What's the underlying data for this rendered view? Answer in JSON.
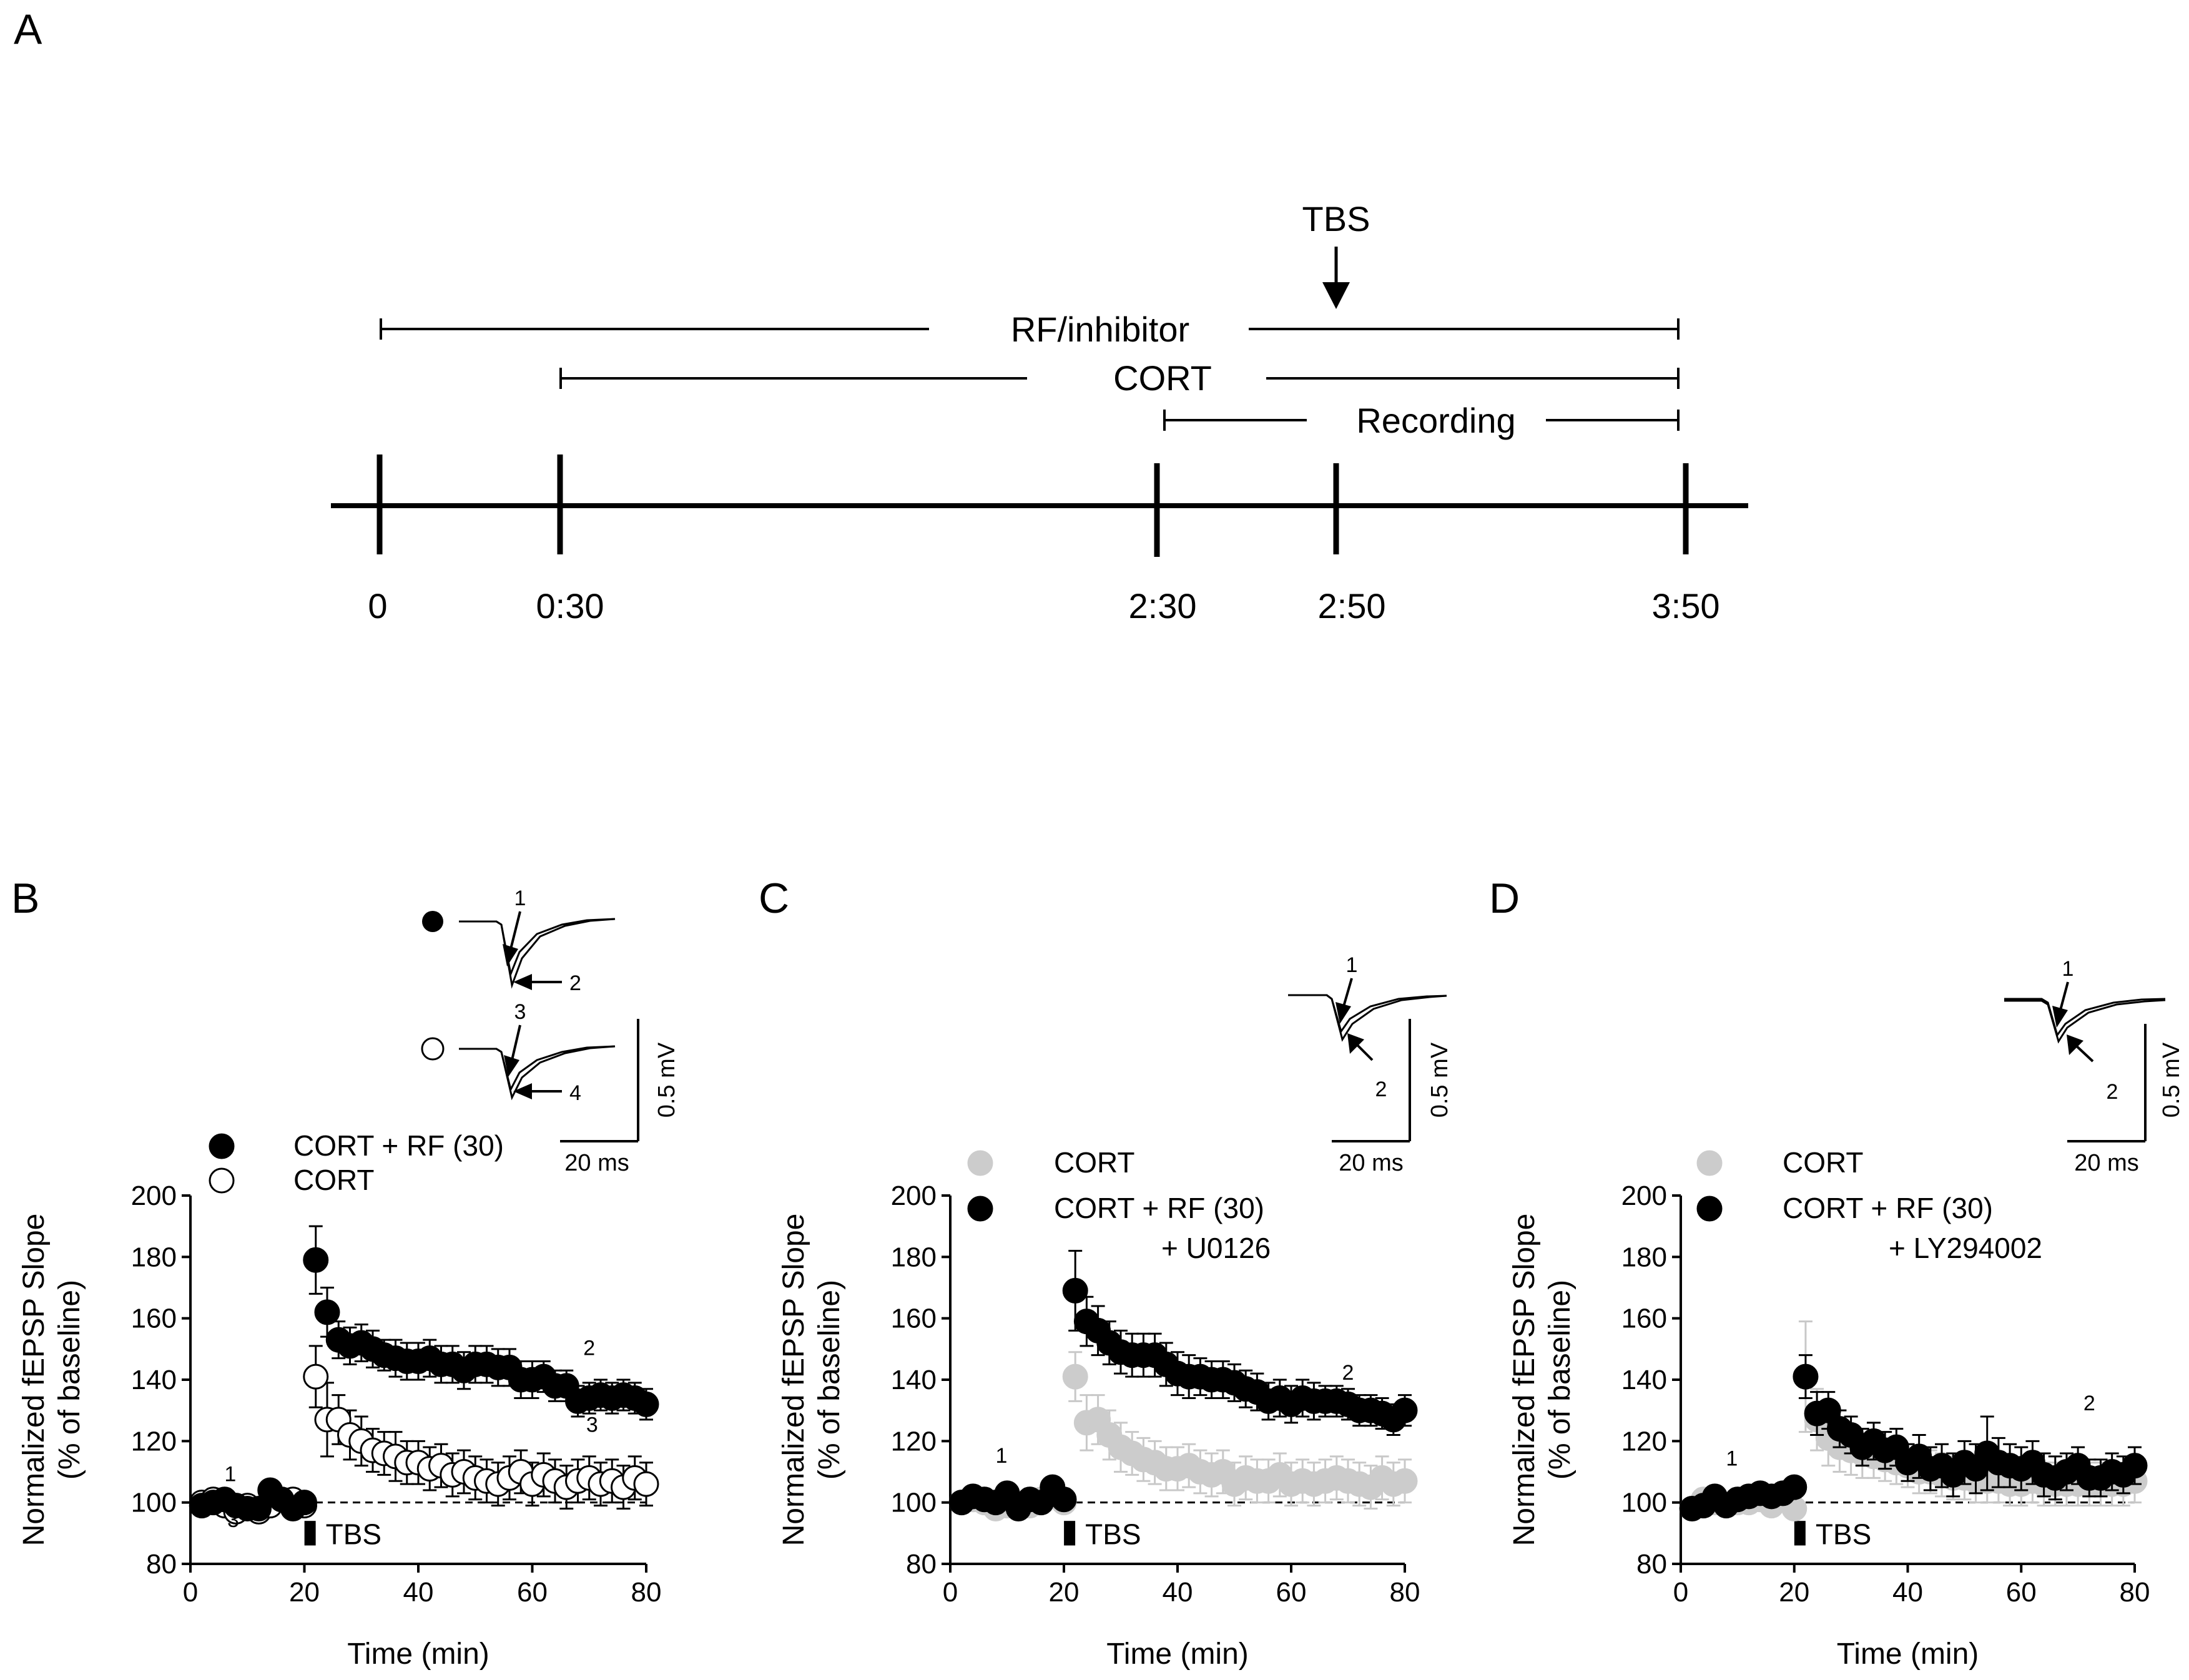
{
  "panel_letters": {
    "A": "A",
    "B": "B",
    "C": "C",
    "D": "D"
  },
  "timeline": {
    "ticks": [
      "0",
      "0:30",
      "2:30",
      "2:50",
      "3:50"
    ],
    "bars": {
      "rf": "RF/inhibitor",
      "cort": "CORT",
      "recording": "Recording"
    },
    "stim_label": "TBS"
  },
  "colors": {
    "black_marker": "#000000",
    "grey_marker": "#cccccc",
    "open_marker_fill": "#ffffff"
  },
  "chart_data": [
    {
      "panel": "B",
      "type": "scatter",
      "xlabel": "Time (min)",
      "ylabel": "Normalized fEPSP Slope",
      "ylabel2": "(% of baseline)",
      "xlim": [
        0,
        80
      ],
      "ylim": [
        80,
        200
      ],
      "xticks": [
        "0",
        "20",
        "40",
        "60",
        "80"
      ],
      "yticks": [
        "80",
        "100",
        "120",
        "140",
        "160",
        "180",
        "200"
      ],
      "baseline": 100,
      "stim_label": "TBS",
      "stim_x": 21,
      "legend": [
        "CORT + RF (30)",
        "CORT"
      ],
      "legend_markers": [
        "filled-black",
        "open"
      ],
      "point_labels": [
        {
          "text": "1",
          "x": 7,
          "y": 107
        },
        {
          "text": "3",
          "x": 7.5,
          "y": 92
        },
        {
          "text": "2",
          "x": 70,
          "y": 148
        },
        {
          "text": "3",
          "x": 70.5,
          "y": 123
        }
      ],
      "trace_labels": [
        "1",
        "2",
        "3",
        "4"
      ],
      "scale_x": "20 ms",
      "scale_y": "0.5 mV",
      "series": [
        {
          "name": "CORT",
          "marker": "open",
          "x": [
            2,
            4,
            6,
            8,
            10,
            12,
            14,
            16,
            18,
            20,
            22,
            24,
            26,
            28,
            30,
            32,
            34,
            36,
            38,
            40,
            42,
            44,
            46,
            48,
            50,
            52,
            54,
            56,
            58,
            60,
            62,
            64,
            66,
            68,
            70,
            72,
            74,
            76,
            78,
            80
          ],
          "y": [
            100,
            101,
            99,
            97,
            99,
            97,
            99,
            101,
            101,
            99,
            141,
            127,
            127,
            122,
            120,
            117,
            116,
            115,
            113,
            113,
            111,
            112,
            109,
            110,
            108,
            107,
            106,
            108,
            110,
            106,
            109,
            107,
            105,
            107,
            108,
            106,
            107,
            105,
            108,
            106
          ],
          "err": [
            1,
            2,
            2,
            2,
            2,
            2,
            2,
            2,
            2,
            2,
            10,
            12,
            8,
            8,
            8,
            7,
            7,
            8,
            7,
            7,
            7,
            7,
            7,
            7,
            7,
            7,
            7,
            7,
            7,
            7,
            7,
            7,
            7,
            7,
            7,
            7,
            7,
            7,
            7,
            7
          ]
        },
        {
          "name": "CORT + RF (30)",
          "marker": "filled-black",
          "x": [
            2,
            4,
            6,
            8,
            10,
            12,
            14,
            16,
            18,
            20,
            22,
            24,
            26,
            28,
            30,
            32,
            34,
            36,
            38,
            40,
            42,
            44,
            46,
            48,
            50,
            52,
            54,
            56,
            58,
            60,
            62,
            64,
            66,
            68,
            70,
            72,
            74,
            76,
            78,
            80
          ],
          "y": [
            99,
            100,
            101,
            99,
            98,
            98,
            104,
            101,
            98,
            100,
            179,
            162,
            153,
            151,
            152,
            150,
            148,
            147,
            146,
            146,
            147,
            145,
            145,
            143,
            145,
            145,
            144,
            144,
            140,
            140,
            141,
            138,
            138,
            133,
            134,
            135,
            134,
            135,
            134,
            132
          ],
          "err": [
            1,
            2,
            2,
            2,
            2,
            2,
            3,
            2,
            2,
            2,
            11,
            8,
            6,
            6,
            6,
            6,
            5,
            6,
            6,
            6,
            6,
            6,
            6,
            6,
            6,
            6,
            6,
            6,
            6,
            6,
            5,
            5,
            5,
            5,
            5,
            5,
            5,
            5,
            5,
            5
          ]
        }
      ]
    },
    {
      "panel": "C",
      "type": "scatter",
      "xlabel": "Time (min)",
      "ylabel": "Normalized fEPSP Slope",
      "ylabel2": "(% of baseline)",
      "xlim": [
        0,
        80
      ],
      "ylim": [
        80,
        200
      ],
      "xticks": [
        "0",
        "20",
        "40",
        "60",
        "80"
      ],
      "yticks": [
        "80",
        "100",
        "120",
        "140",
        "160",
        "180",
        "200"
      ],
      "baseline": 100,
      "stim_label": "TBS",
      "stim_x": 21,
      "legend": [
        "CORT",
        "CORT + RF (30)",
        "+ U0126"
      ],
      "legend_markers": [
        "filled-grey",
        "filled-black"
      ],
      "point_labels": [
        {
          "text": "1",
          "x": 9,
          "y": 113
        },
        {
          "text": "2",
          "x": 70,
          "y": 140
        }
      ],
      "trace_labels": [
        "1",
        "2"
      ],
      "scale_x": "20 ms",
      "scale_y": "0.5 mV",
      "series": [
        {
          "name": "CORT",
          "marker": "filled-grey",
          "x": [
            2,
            4,
            6,
            8,
            10,
            12,
            14,
            16,
            18,
            20,
            22,
            24,
            26,
            28,
            30,
            32,
            34,
            36,
            38,
            40,
            42,
            44,
            46,
            48,
            50,
            52,
            54,
            56,
            58,
            60,
            62,
            64,
            66,
            68,
            70,
            72,
            74,
            76,
            78,
            80
          ],
          "y": [
            100,
            101,
            100,
            98,
            99,
            98,
            99,
            101,
            102,
            100,
            141,
            126,
            127,
            122,
            118,
            116,
            114,
            113,
            111,
            111,
            112,
            110,
            109,
            110,
            106,
            108,
            107,
            107,
            109,
            106,
            107,
            106,
            107,
            108,
            107,
            106,
            105,
            108,
            106,
            107
          ],
          "err": [
            1,
            2,
            2,
            2,
            2,
            2,
            2,
            2,
            2,
            2,
            8,
            9,
            8,
            8,
            8,
            7,
            7,
            7,
            7,
            7,
            7,
            7,
            7,
            7,
            7,
            7,
            7,
            7,
            7,
            7,
            7,
            7,
            7,
            7,
            7,
            7,
            7,
            7,
            7,
            7
          ]
        },
        {
          "name": "CORT + RF (30) + U0126",
          "marker": "filled-black",
          "x": [
            2,
            4,
            6,
            8,
            10,
            12,
            14,
            16,
            18,
            20,
            22,
            24,
            26,
            28,
            30,
            32,
            34,
            36,
            38,
            40,
            42,
            44,
            46,
            48,
            50,
            52,
            54,
            56,
            58,
            60,
            62,
            64,
            66,
            68,
            70,
            72,
            74,
            76,
            78,
            80
          ],
          "y": [
            100,
            102,
            101,
            100,
            103,
            98,
            101,
            100,
            105,
            101,
            169,
            159,
            156,
            152,
            149,
            148,
            148,
            148,
            145,
            142,
            141,
            141,
            140,
            140,
            139,
            137,
            136,
            133,
            134,
            132,
            134,
            133,
            133,
            133,
            132,
            130,
            130,
            129,
            127,
            130
          ],
          "err": [
            1,
            2,
            2,
            2,
            2,
            2,
            2,
            2,
            2,
            2,
            13,
            8,
            8,
            7,
            7,
            7,
            7,
            7,
            7,
            7,
            7,
            6,
            6,
            6,
            6,
            6,
            6,
            6,
            6,
            6,
            6,
            6,
            5,
            5,
            5,
            5,
            5,
            5,
            5,
            5
          ]
        }
      ]
    },
    {
      "panel": "D",
      "type": "scatter",
      "xlabel": "Time (min)",
      "ylabel": "Normalized fEPSP Slope",
      "ylabel2": "(% of baseline)",
      "xlim": [
        0,
        80
      ],
      "ylim": [
        80,
        200
      ],
      "xticks": [
        "0",
        "20",
        "40",
        "60",
        "80"
      ],
      "yticks": [
        "80",
        "100",
        "120",
        "140",
        "160",
        "180",
        "200"
      ],
      "baseline": 100,
      "stim_label": "TBS",
      "stim_x": 21,
      "legend": [
        "CORT",
        "CORT + RF (30)",
        "+ LY294002"
      ],
      "legend_markers": [
        "filled-grey",
        "filled-black"
      ],
      "point_labels": [
        {
          "text": "1",
          "x": 9,
          "y": 112
        },
        {
          "text": "2",
          "x": 72,
          "y": 130
        }
      ],
      "trace_labels": [
        "1",
        "2"
      ],
      "scale_x": "20 ms",
      "scale_y": "0.5 mV",
      "series": [
        {
          "name": "CORT",
          "marker": "filled-grey",
          "x": [
            2,
            4,
            6,
            8,
            10,
            12,
            14,
            16,
            18,
            20,
            22,
            24,
            26,
            28,
            30,
            32,
            34,
            36,
            38,
            40,
            42,
            44,
            46,
            48,
            50,
            52,
            54,
            56,
            58,
            60,
            62,
            64,
            66,
            68,
            70,
            72,
            74,
            76,
            78,
            80
          ],
          "y": [
            98,
            101,
            100,
            99,
            100,
            100,
            101,
            99,
            101,
            98,
            141,
            127,
            121,
            118,
            117,
            116,
            115,
            114,
            113,
            112,
            110,
            110,
            109,
            108,
            108,
            107,
            107,
            107,
            106,
            106,
            107,
            106,
            106,
            106,
            106,
            106,
            106,
            106,
            106,
            107
          ],
          "err": [
            1,
            2,
            2,
            2,
            2,
            2,
            2,
            2,
            2,
            2,
            18,
            10,
            9,
            8,
            8,
            8,
            7,
            7,
            7,
            7,
            7,
            7,
            7,
            7,
            7,
            7,
            7,
            7,
            7,
            7,
            7,
            7,
            7,
            7,
            7,
            7,
            7,
            7,
            7,
            7
          ]
        },
        {
          "name": "CORT + RF (30) + LY294002",
          "marker": "filled-black",
          "x": [
            2,
            4,
            6,
            8,
            10,
            12,
            14,
            16,
            18,
            20,
            22,
            24,
            26,
            28,
            30,
            32,
            34,
            36,
            38,
            40,
            42,
            44,
            46,
            48,
            50,
            52,
            54,
            56,
            58,
            60,
            62,
            64,
            66,
            68,
            70,
            72,
            74,
            76,
            78,
            80
          ],
          "y": [
            98,
            99,
            102,
            99,
            101,
            102,
            103,
            102,
            103,
            105,
            141,
            129,
            130,
            124,
            122,
            118,
            120,
            117,
            118,
            113,
            115,
            111,
            112,
            109,
            113,
            111,
            116,
            113,
            112,
            111,
            113,
            109,
            108,
            110,
            112,
            108,
            108,
            110,
            109,
            112
          ],
          "err": [
            1,
            2,
            2,
            2,
            2,
            2,
            2,
            2,
            2,
            2,
            7,
            7,
            6,
            6,
            6,
            6,
            6,
            6,
            6,
            6,
            7,
            7,
            7,
            7,
            7,
            8,
            12,
            8,
            7,
            7,
            7,
            7,
            7,
            6,
            6,
            6,
            6,
            6,
            6,
            6
          ]
        }
      ]
    }
  ]
}
